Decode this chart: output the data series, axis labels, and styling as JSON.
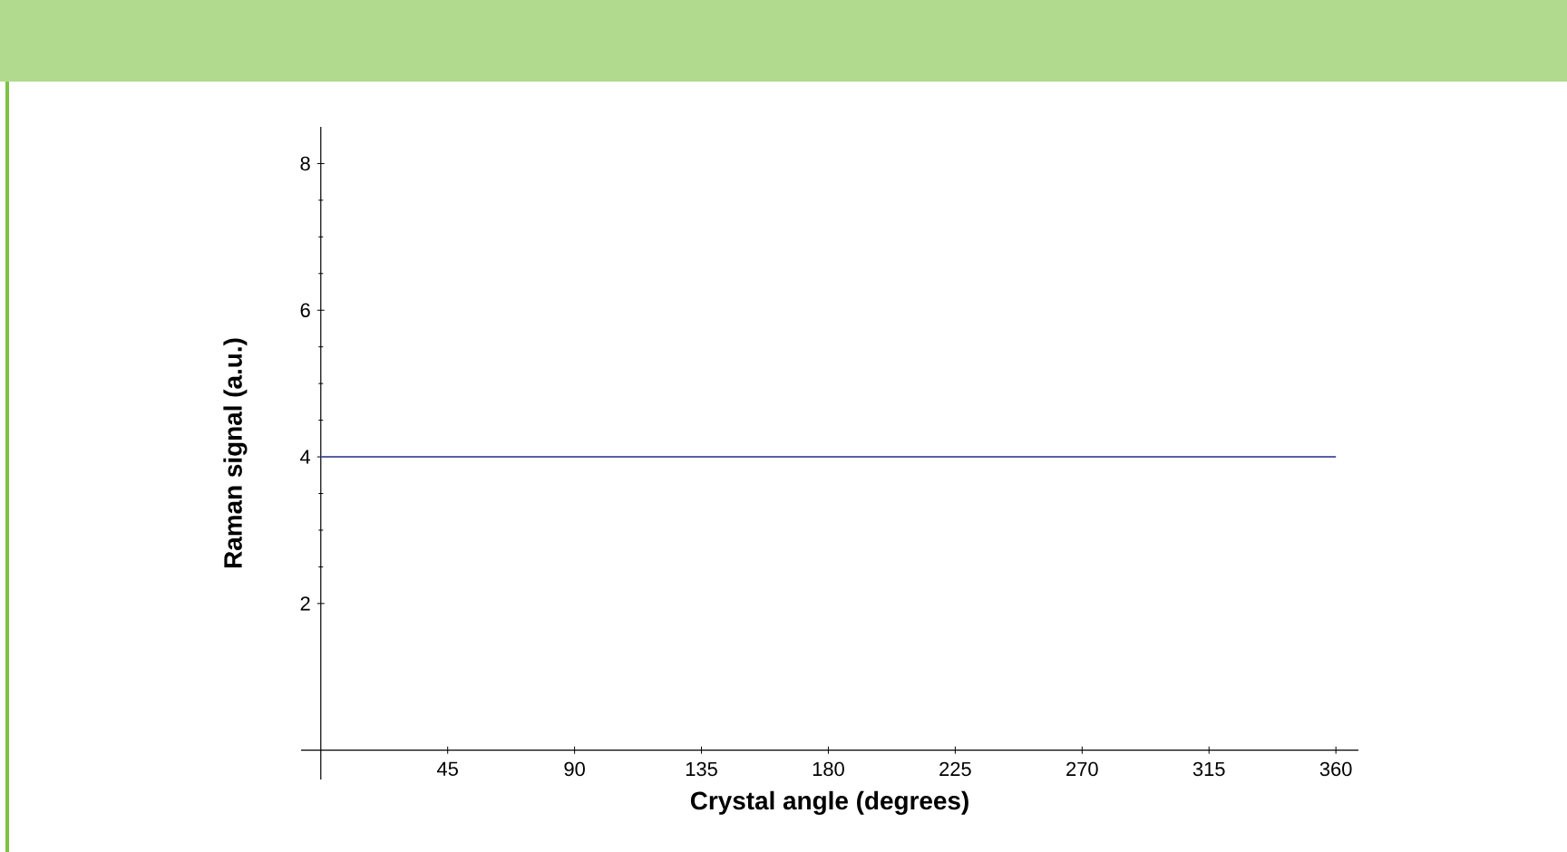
{
  "chart_data": {
    "type": "line",
    "xlabel": "Crystal angle (degrees)",
    "ylabel": "Raman signal (a.u.)",
    "x": [
      0,
      360
    ],
    "series": [
      {
        "color": "#5a5fa8",
        "values": [
          4,
          4
        ]
      }
    ],
    "xlim": [
      -7,
      368
    ],
    "ylim": [
      -0.4,
      8.5
    ],
    "xticks": [
      45,
      90,
      135,
      180,
      225,
      270,
      315,
      360
    ],
    "yticks": [
      2,
      4,
      6,
      8
    ],
    "grid": false,
    "marker": "none",
    "line_style": "solid"
  }
}
